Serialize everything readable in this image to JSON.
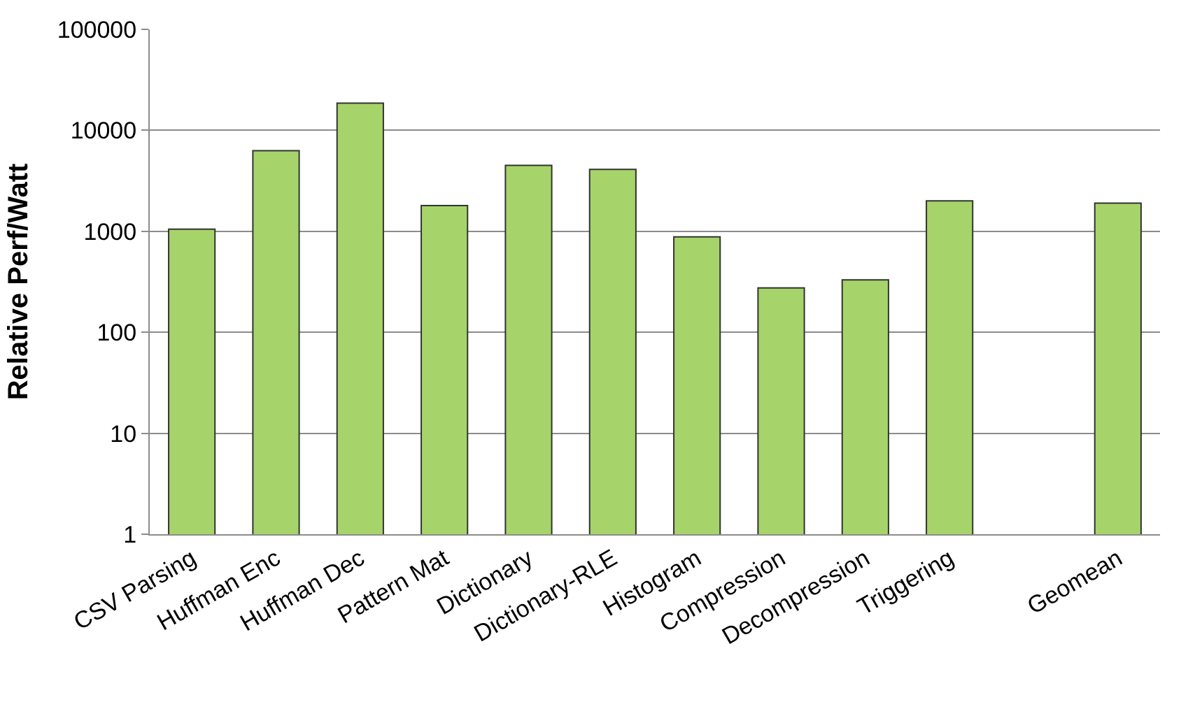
{
  "chart_data": {
    "type": "bar",
    "ylabel": "Relative Perf/Watt",
    "categories": [
      "CSV Parsing",
      "Huffman Enc",
      "Huffman Dec",
      "Pattern Mat",
      "Dictionary",
      "Dictionary-RLE",
      "Histogram",
      "Compression",
      "Decompression",
      "Triggering",
      null,
      "Geomean"
    ],
    "values": [
      1050,
      6300,
      18600,
      1800,
      4500,
      4100,
      880,
      275,
      330,
      2000,
      null,
      1900
    ],
    "color": "#a6d46a",
    "log": true,
    "ylim": [
      1,
      100000
    ],
    "yticks": [
      1,
      10,
      100,
      1000,
      10000,
      100000
    ],
    "grid": "y",
    "legend": false
  }
}
